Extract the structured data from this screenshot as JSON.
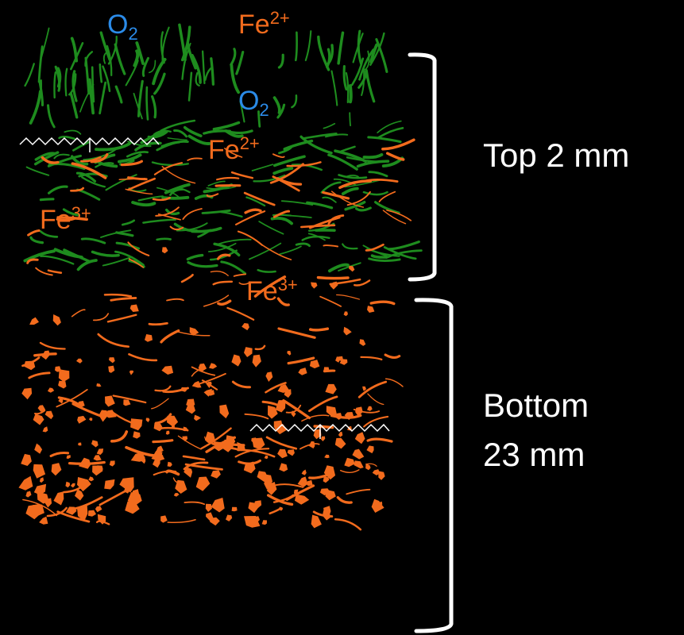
{
  "labels": [
    {
      "base": "O",
      "sub": "2"
    },
    {
      "base": "Fe",
      "sup": "2+"
    },
    {
      "base": "O",
      "sub": "2"
    },
    {
      "base": "Fe",
      "sup": "2+"
    },
    {
      "base": "Fe",
      "sup": "3+"
    },
    {
      "base": "Fe",
      "sup": "3+"
    }
  ],
  "brackets": [
    {
      "label_lines": [
        "Top 2 mm"
      ]
    },
    {
      "label_lines": [
        "Bottom",
        "23 mm"
      ]
    }
  ]
}
